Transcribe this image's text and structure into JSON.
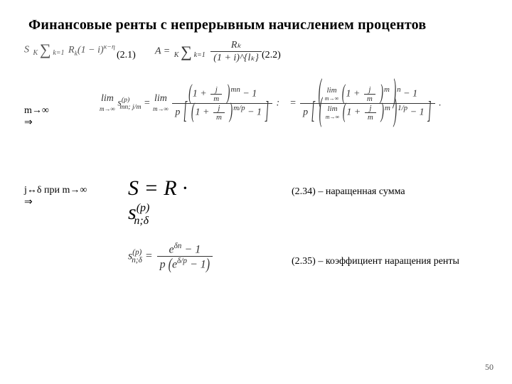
{
  "title": "Финансовые ренты с непрерывным начислением процентов",
  "eq21": {
    "label": "(2.1)"
  },
  "eq22": {
    "label": "(2.2)"
  },
  "limits": {
    "m_to_inf_line1": "m→∞",
    "m_to_inf_line2": "⇒",
    "j_to_delta_line1": "j↔δ при m→∞",
    "j_to_delta_line2": "⇒"
  },
  "formula21_text": "S = Σ Rₖ(1 − i)^{κ−η}",
  "formula22_lhs": "A =",
  "formula22_top": "Rₖ",
  "formula22_bot": "(1 + i)^{lₖ}",
  "sum_top": "K",
  "sum_bot": "k=1",
  "limit_lhs": "lim",
  "limit_sub": "m→∞",
  "snm": "s",
  "snm_sup": "(p)",
  "snm_sub": "mn; j/m",
  "eq": " = ",
  "frac_jm_top": "j",
  "frac_jm_bot": "m",
  "one_plus": "1 +",
  "exp_mn": "mn",
  "exp_m_over_p": "m/p",
  "exp_1_over_p": "1/p",
  "exp_m": "m",
  "exp_n": "n",
  "minus1": "− 1",
  "p_prefix": "p",
  "dot": ".",
  "semicolon": ":",
  "formula_S_text": "S = R · s",
  "formula_S_sup": "(p)",
  "formula_S_sub": "n;δ",
  "eq234": {
    "label": "(2.34) – наращенная сумма"
  },
  "coef_lhs_sup": "(p)",
  "coef_lhs_sub": "n;δ",
  "coef_top": "e^{δn} − 1",
  "coef_bot_a": "p",
  "coef_bot_b": "e^{δ/p} − 1",
  "eq235": {
    "label": "(2.35) – коэффициент наращения ренты"
  },
  "page_number": "50",
  "colors": {
    "text": "#000000",
    "grey": "#555555",
    "bg": "#ffffff"
  }
}
